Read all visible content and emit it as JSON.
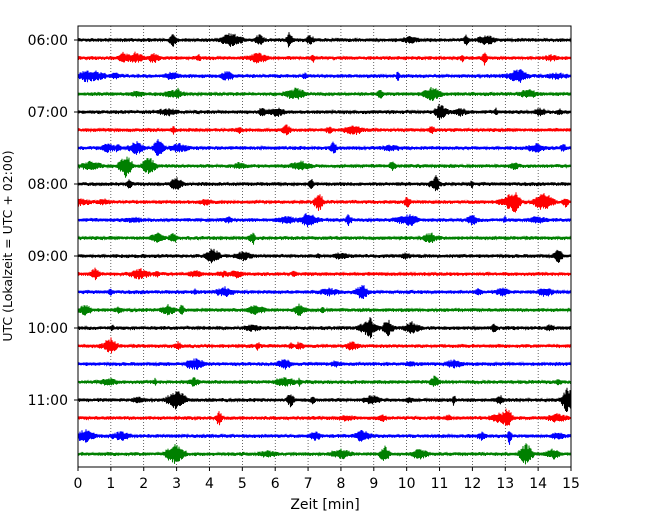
{
  "chart_data": {
    "type": "line",
    "title": "",
    "xlabel": "Zeit  [min]",
    "ylabel": "UTC (Lokalzeit = UTC + 02:00)",
    "xlim": [
      0,
      15
    ],
    "x_ticks": [
      "0",
      "1",
      "2",
      "3",
      "4",
      "5",
      "6",
      "7",
      "8",
      "9",
      "10",
      "11",
      "12",
      "13",
      "14",
      "15"
    ],
    "y_ticks": [
      "06:00",
      "07:00",
      "08:00",
      "09:00",
      "10:00",
      "11:00"
    ],
    "grid": "vertical dotted",
    "legend": "none",
    "line_colors": [
      "#000000",
      "#ff0000",
      "#0000ff",
      "#008000"
    ],
    "traces": [
      {
        "start": "06:00",
        "color": "#000000"
      },
      {
        "start": "06:15",
        "color": "#ff0000"
      },
      {
        "start": "06:30",
        "color": "#0000ff"
      },
      {
        "start": "06:45",
        "color": "#008000"
      },
      {
        "start": "07:00",
        "color": "#000000"
      },
      {
        "start": "07:15",
        "color": "#ff0000"
      },
      {
        "start": "07:30",
        "color": "#0000ff"
      },
      {
        "start": "07:45",
        "color": "#008000"
      },
      {
        "start": "08:00",
        "color": "#000000"
      },
      {
        "start": "08:15",
        "color": "#ff0000"
      },
      {
        "start": "08:30",
        "color": "#0000ff"
      },
      {
        "start": "08:45",
        "color": "#008000"
      },
      {
        "start": "09:00",
        "color": "#000000"
      },
      {
        "start": "09:15",
        "color": "#ff0000"
      },
      {
        "start": "09:30",
        "color": "#0000ff"
      },
      {
        "start": "09:45",
        "color": "#008000"
      },
      {
        "start": "10:00",
        "color": "#000000"
      },
      {
        "start": "10:15",
        "color": "#ff0000"
      },
      {
        "start": "10:30",
        "color": "#0000ff"
      },
      {
        "start": "10:45",
        "color": "#008000"
      },
      {
        "start": "11:00",
        "color": "#000000"
      },
      {
        "start": "11:15",
        "color": "#ff0000"
      },
      {
        "start": "11:30",
        "color": "#0000ff"
      },
      {
        "start": "11:45",
        "color": "#008000"
      }
    ]
  }
}
